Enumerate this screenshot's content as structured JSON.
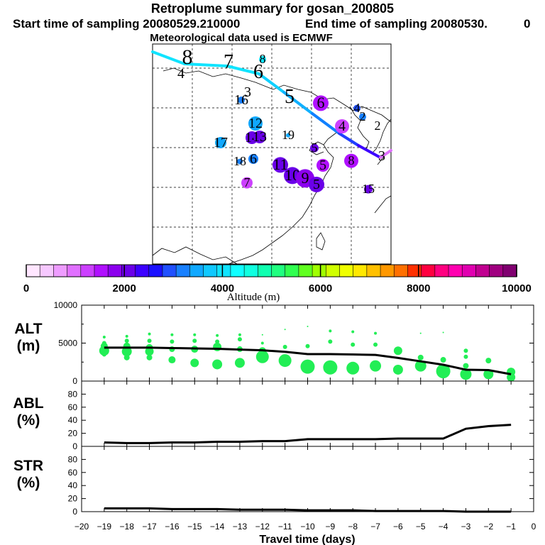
{
  "header": {
    "title": "Retroplume summary for gosan_200805",
    "start": "Start time of sampling 20080529.210000",
    "end": "End time of sampling 20080530.",
    "end_value": "0",
    "met": "Meteorological data used is ECMWF"
  },
  "colorbar": {
    "label": "Altitude (m)",
    "ticks": [
      "0",
      "2000",
      "4000",
      "6000",
      "8000",
      "10000"
    ],
    "range": [
      0,
      10000
    ],
    "colors": [
      "#ffe6ff",
      "#f6c8ff",
      "#ee9cff",
      "#e070ff",
      "#cc40ff",
      "#b010ff",
      "#8c00ee",
      "#6a00e8",
      "#3c00ff",
      "#1a10ff",
      "#2050ff",
      "#1880ff",
      "#10a8ff",
      "#10c8ff",
      "#10e4ff",
      "#10ffff",
      "#10ffe0",
      "#10ffb0",
      "#20ff80",
      "#30ff50",
      "#60ff20",
      "#a0ff00",
      "#d0ff00",
      "#f0ff00",
      "#ffe800",
      "#ffc000",
      "#ff9800",
      "#ff7000",
      "#ff3000",
      "#ff0040",
      "#ff0080",
      "#ff00b0",
      "#e000b0",
      "#c00090",
      "#a00080",
      "#800070"
    ]
  },
  "map": {
    "markers": [
      {
        "label": "8",
        "alt": 3800,
        "size": 0
      },
      {
        "label": "4",
        "alt": 3800,
        "size": 0
      },
      {
        "label": "7",
        "alt": 3800,
        "size": 0
      },
      {
        "label": "8",
        "alt": 3900,
        "size": 5
      },
      {
        "label": "6",
        "alt": 3900,
        "size": 0
      },
      {
        "label": "5",
        "alt": 2800,
        "size": 0
      },
      {
        "label": "3",
        "alt": 3200,
        "size": 0
      },
      {
        "label": "16",
        "alt": 3100,
        "size": 5
      },
      {
        "label": "6",
        "alt": 1500,
        "size": 11
      },
      {
        "label": "4",
        "alt": 2900,
        "size": 5
      },
      {
        "label": "2",
        "alt": 3100,
        "size": 5
      },
      {
        "label": "2",
        "alt": 3000,
        "size": 0
      },
      {
        "label": "12",
        "alt": 3600,
        "size": 10
      },
      {
        "label": "19",
        "alt": 3500,
        "size": 3
      },
      {
        "label": "4",
        "alt": 1300,
        "size": 10
      },
      {
        "label": "17",
        "alt": 3600,
        "size": 8
      },
      {
        "label": "14",
        "alt": 2000,
        "size": 9
      },
      {
        "label": "13",
        "alt": 2100,
        "size": 9
      },
      {
        "label": "5",
        "alt": 2100,
        "size": 6
      },
      {
        "label": "5",
        "alt": 1400,
        "size": 9
      },
      {
        "label": "18",
        "alt": 3300,
        "size": 4
      },
      {
        "label": "6",
        "alt": 3300,
        "size": 7
      },
      {
        "label": "11",
        "alt": 2200,
        "size": 11
      },
      {
        "label": "10",
        "alt": 2100,
        "size": 12
      },
      {
        "label": "9",
        "alt": 1900,
        "size": 13
      },
      {
        "label": "5",
        "alt": 2000,
        "size": 11
      },
      {
        "label": "8",
        "alt": 1600,
        "size": 10
      },
      {
        "label": "7",
        "alt": 1300,
        "size": 8
      },
      {
        "label": "15",
        "alt": 2200,
        "size": 6
      },
      {
        "label": "3",
        "alt": 3800,
        "size": 0
      }
    ]
  },
  "chart_data": [
    {
      "type": "scatter",
      "name": "ALT",
      "ylabel_line1": "ALT",
      "ylabel_line2": "(m)",
      "ylim": [
        0,
        10000
      ],
      "yticks": [
        "0",
        "5000",
        "10000"
      ],
      "mean_line": {
        "x": [
          -19,
          -18,
          -17,
          -16,
          -15,
          -14,
          -13,
          -12,
          -11,
          -10,
          -9,
          -8,
          -7,
          -6,
          -5,
          -4,
          -3,
          -2,
          -1
        ],
        "y": [
          4400,
          4400,
          4400,
          4350,
          4300,
          4250,
          4150,
          4050,
          3850,
          3550,
          3550,
          3500,
          3450,
          3050,
          2600,
          2150,
          1500,
          1450,
          900
        ]
      },
      "points": [
        {
          "x": -19,
          "y": 5800,
          "s": 2
        },
        {
          "x": -19,
          "y": 5000,
          "s": 3
        },
        {
          "x": -19,
          "y": 4600,
          "s": 5
        },
        {
          "x": -19,
          "y": 4000,
          "s": 7
        },
        {
          "x": -19,
          "y": 3500,
          "s": 3
        },
        {
          "x": -18,
          "y": 5900,
          "s": 2
        },
        {
          "x": -18,
          "y": 5300,
          "s": 3
        },
        {
          "x": -18,
          "y": 4600,
          "s": 5
        },
        {
          "x": -18,
          "y": 3900,
          "s": 7
        },
        {
          "x": -18,
          "y": 3100,
          "s": 4
        },
        {
          "x": -17,
          "y": 6200,
          "s": 2
        },
        {
          "x": -17,
          "y": 5300,
          "s": 3
        },
        {
          "x": -17,
          "y": 4400,
          "s": 5
        },
        {
          "x": -17,
          "y": 3900,
          "s": 6
        },
        {
          "x": -17,
          "y": 3100,
          "s": 4
        },
        {
          "x": -16,
          "y": 6100,
          "s": 2
        },
        {
          "x": -16,
          "y": 5200,
          "s": 3
        },
        {
          "x": -16,
          "y": 4200,
          "s": 4
        },
        {
          "x": -16,
          "y": 2800,
          "s": 5
        },
        {
          "x": -15,
          "y": 6100,
          "s": 2
        },
        {
          "x": -15,
          "y": 5300,
          "s": 3
        },
        {
          "x": -15,
          "y": 4200,
          "s": 5
        },
        {
          "x": -15,
          "y": 2400,
          "s": 6
        },
        {
          "x": -14,
          "y": 6000,
          "s": 2
        },
        {
          "x": -14,
          "y": 5200,
          "s": 3
        },
        {
          "x": -14,
          "y": 4500,
          "s": 6
        },
        {
          "x": -14,
          "y": 2200,
          "s": 7
        },
        {
          "x": -13,
          "y": 6100,
          "s": 2
        },
        {
          "x": -13,
          "y": 5500,
          "s": 3
        },
        {
          "x": -13,
          "y": 4200,
          "s": 4
        },
        {
          "x": -13,
          "y": 2400,
          "s": 7
        },
        {
          "x": -12,
          "y": 6100,
          "s": 1
        },
        {
          "x": -12,
          "y": 5000,
          "s": 2
        },
        {
          "x": -12,
          "y": 4000,
          "s": 5
        },
        {
          "x": -12,
          "y": 3200,
          "s": 9
        },
        {
          "x": -11,
          "y": 6800,
          "s": 1
        },
        {
          "x": -11,
          "y": 4500,
          "s": 3
        },
        {
          "x": -11,
          "y": 2700,
          "s": 9
        },
        {
          "x": -10,
          "y": 7200,
          "s": 1
        },
        {
          "x": -10,
          "y": 4600,
          "s": 3
        },
        {
          "x": -10,
          "y": 1900,
          "s": 10
        },
        {
          "x": -9,
          "y": 6600,
          "s": 2
        },
        {
          "x": -9,
          "y": 5200,
          "s": 3
        },
        {
          "x": -9,
          "y": 1800,
          "s": 10
        },
        {
          "x": -8,
          "y": 6500,
          "s": 2
        },
        {
          "x": -8,
          "y": 4800,
          "s": 3
        },
        {
          "x": -8,
          "y": 1700,
          "s": 9
        },
        {
          "x": -7,
          "y": 6300,
          "s": 2
        },
        {
          "x": -7,
          "y": 4800,
          "s": 3
        },
        {
          "x": -7,
          "y": 2000,
          "s": 8
        },
        {
          "x": -6,
          "y": 4000,
          "s": 6
        },
        {
          "x": -6,
          "y": 1500,
          "s": 7
        },
        {
          "x": -5,
          "y": 6300,
          "s": 1
        },
        {
          "x": -5,
          "y": 3100,
          "s": 4
        },
        {
          "x": -5,
          "y": 2000,
          "s": 8
        },
        {
          "x": -4,
          "y": 6400,
          "s": 1
        },
        {
          "x": -4,
          "y": 2800,
          "s": 4
        },
        {
          "x": -4,
          "y": 1300,
          "s": 10
        },
        {
          "x": -3,
          "y": 4000,
          "s": 3
        },
        {
          "x": -3,
          "y": 3200,
          "s": 3
        },
        {
          "x": -3,
          "y": 2000,
          "s": 4
        },
        {
          "x": -3,
          "y": 900,
          "s": 8
        },
        {
          "x": -2,
          "y": 2700,
          "s": 4
        },
        {
          "x": -2,
          "y": 900,
          "s": 7
        },
        {
          "x": -1,
          "y": 1200,
          "s": 6
        },
        {
          "x": -1,
          "y": 500,
          "s": 6
        }
      ]
    },
    {
      "type": "line",
      "name": "ABL",
      "ylabel_line1": "ABL",
      "ylabel_line2": "(%)",
      "ylim": [
        0,
        100
      ],
      "yticks": [
        "0",
        "20",
        "40",
        "60",
        "80"
      ],
      "x": [
        -19,
        -18,
        -17,
        -16,
        -15,
        -14,
        -13,
        -12,
        -11,
        -10,
        -9,
        -8,
        -7,
        -6,
        -5,
        -4,
        -3,
        -2,
        -1
      ],
      "y": [
        6,
        5,
        5,
        6,
        6,
        7,
        7,
        8,
        8,
        11,
        11,
        11,
        11,
        12,
        12,
        12,
        27,
        31,
        33
      ]
    },
    {
      "type": "line",
      "name": "STR",
      "ylabel_line1": "STR",
      "ylabel_line2": "(%)",
      "ylim": [
        0,
        100
      ],
      "yticks": [
        "0",
        "20",
        "40",
        "60",
        "80"
      ],
      "x": [
        -19,
        -18,
        -17,
        -16,
        -15,
        -14,
        -13,
        -12,
        -11,
        -10,
        -9,
        -8,
        -7,
        -6,
        -5,
        -4,
        -3,
        -2,
        -1
      ],
      "y": [
        5,
        5,
        5,
        4,
        4,
        4,
        3,
        3,
        3,
        2,
        2,
        2,
        1,
        1,
        1,
        1,
        0,
        0,
        0
      ]
    }
  ],
  "xaxis": {
    "label": "Travel time (days)",
    "ticks": [
      "−20",
      "−19",
      "−18",
      "−17",
      "−16",
      "−15",
      "−14",
      "−13",
      "−12",
      "−11",
      "−10",
      "−9",
      "−8",
      "−7",
      "−6",
      "−5",
      "−4",
      "−3",
      "−2",
      "−1",
      "0"
    ]
  }
}
